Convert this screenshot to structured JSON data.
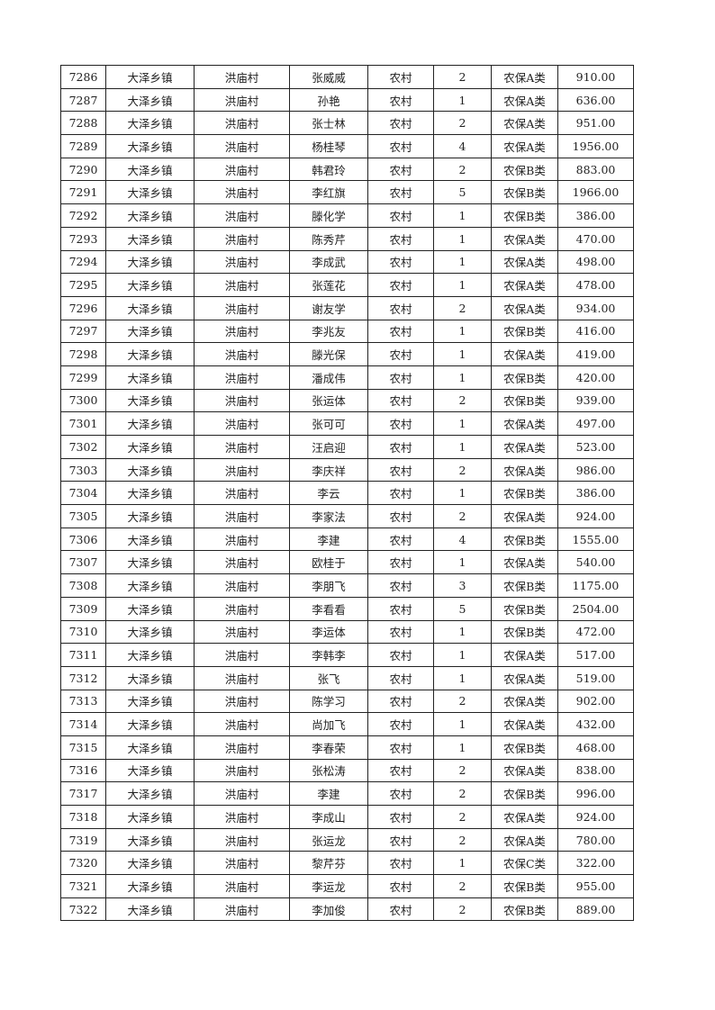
{
  "table": {
    "rows": [
      [
        "7286",
        "大泽乡镇",
        "洪庙村",
        "张威威",
        "农村",
        "2",
        "农保A类",
        "910.00"
      ],
      [
        "7287",
        "大泽乡镇",
        "洪庙村",
        "孙艳",
        "农村",
        "1",
        "农保A类",
        "636.00"
      ],
      [
        "7288",
        "大泽乡镇",
        "洪庙村",
        "张士林",
        "农村",
        "2",
        "农保A类",
        "951.00"
      ],
      [
        "7289",
        "大泽乡镇",
        "洪庙村",
        "杨桂琴",
        "农村",
        "4",
        "农保A类",
        "1956.00"
      ],
      [
        "7290",
        "大泽乡镇",
        "洪庙村",
        "韩君玲",
        "农村",
        "2",
        "农保B类",
        "883.00"
      ],
      [
        "7291",
        "大泽乡镇",
        "洪庙村",
        "李红旗",
        "农村",
        "5",
        "农保B类",
        "1966.00"
      ],
      [
        "7292",
        "大泽乡镇",
        "洪庙村",
        "滕化学",
        "农村",
        "1",
        "农保B类",
        "386.00"
      ],
      [
        "7293",
        "大泽乡镇",
        "洪庙村",
        "陈秀芹",
        "农村",
        "1",
        "农保A类",
        "470.00"
      ],
      [
        "7294",
        "大泽乡镇",
        "洪庙村",
        "李成武",
        "农村",
        "1",
        "农保A类",
        "498.00"
      ],
      [
        "7295",
        "大泽乡镇",
        "洪庙村",
        "张莲花",
        "农村",
        "1",
        "农保A类",
        "478.00"
      ],
      [
        "7296",
        "大泽乡镇",
        "洪庙村",
        "谢友学",
        "农村",
        "2",
        "农保A类",
        "934.00"
      ],
      [
        "7297",
        "大泽乡镇",
        "洪庙村",
        "李兆友",
        "农村",
        "1",
        "农保B类",
        "416.00"
      ],
      [
        "7298",
        "大泽乡镇",
        "洪庙村",
        "滕光保",
        "农村",
        "1",
        "农保A类",
        "419.00"
      ],
      [
        "7299",
        "大泽乡镇",
        "洪庙村",
        "潘成伟",
        "农村",
        "1",
        "农保B类",
        "420.00"
      ],
      [
        "7300",
        "大泽乡镇",
        "洪庙村",
        "张运体",
        "农村",
        "2",
        "农保B类",
        "939.00"
      ],
      [
        "7301",
        "大泽乡镇",
        "洪庙村",
        "张可可",
        "农村",
        "1",
        "农保A类",
        "497.00"
      ],
      [
        "7302",
        "大泽乡镇",
        "洪庙村",
        "汪启迎",
        "农村",
        "1",
        "农保A类",
        "523.00"
      ],
      [
        "7303",
        "大泽乡镇",
        "洪庙村",
        "李庆祥",
        "农村",
        "2",
        "农保A类",
        "986.00"
      ],
      [
        "7304",
        "大泽乡镇",
        "洪庙村",
        "李云",
        "农村",
        "1",
        "农保B类",
        "386.00"
      ],
      [
        "7305",
        "大泽乡镇",
        "洪庙村",
        "李家法",
        "农村",
        "2",
        "农保A类",
        "924.00"
      ],
      [
        "7306",
        "大泽乡镇",
        "洪庙村",
        "李建",
        "农村",
        "4",
        "农保B类",
        "1555.00"
      ],
      [
        "7307",
        "大泽乡镇",
        "洪庙村",
        "欧桂于",
        "农村",
        "1",
        "农保A类",
        "540.00"
      ],
      [
        "7308",
        "大泽乡镇",
        "洪庙村",
        "李朋飞",
        "农村",
        "3",
        "农保B类",
        "1175.00"
      ],
      [
        "7309",
        "大泽乡镇",
        "洪庙村",
        "李看看",
        "农村",
        "5",
        "农保B类",
        "2504.00"
      ],
      [
        "7310",
        "大泽乡镇",
        "洪庙村",
        "李运体",
        "农村",
        "1",
        "农保B类",
        "472.00"
      ],
      [
        "7311",
        "大泽乡镇",
        "洪庙村",
        "李韩李",
        "农村",
        "1",
        "农保A类",
        "517.00"
      ],
      [
        "7312",
        "大泽乡镇",
        "洪庙村",
        "张飞",
        "农村",
        "1",
        "农保A类",
        "519.00"
      ],
      [
        "7313",
        "大泽乡镇",
        "洪庙村",
        "陈学习",
        "农村",
        "2",
        "农保A类",
        "902.00"
      ],
      [
        "7314",
        "大泽乡镇",
        "洪庙村",
        "尚加飞",
        "农村",
        "1",
        "农保A类",
        "432.00"
      ],
      [
        "7315",
        "大泽乡镇",
        "洪庙村",
        "李春荣",
        "农村",
        "1",
        "农保B类",
        "468.00"
      ],
      [
        "7316",
        "大泽乡镇",
        "洪庙村",
        "张松涛",
        "农村",
        "2",
        "农保A类",
        "838.00"
      ],
      [
        "7317",
        "大泽乡镇",
        "洪庙村",
        "李建",
        "农村",
        "2",
        "农保B类",
        "996.00"
      ],
      [
        "7318",
        "大泽乡镇",
        "洪庙村",
        "李成山",
        "农村",
        "2",
        "农保A类",
        "924.00"
      ],
      [
        "7319",
        "大泽乡镇",
        "洪庙村",
        "张运龙",
        "农村",
        "2",
        "农保A类",
        "780.00"
      ],
      [
        "7320",
        "大泽乡镇",
        "洪庙村",
        "黎芹芬",
        "农村",
        "1",
        "农保C类",
        "322.00"
      ],
      [
        "7321",
        "大泽乡镇",
        "洪庙村",
        "李运龙",
        "农村",
        "2",
        "农保B类",
        "955.00"
      ],
      [
        "7322",
        "大泽乡镇",
        "洪庙村",
        "李加俊",
        "农村",
        "2",
        "农保B类",
        "889.00"
      ]
    ]
  }
}
